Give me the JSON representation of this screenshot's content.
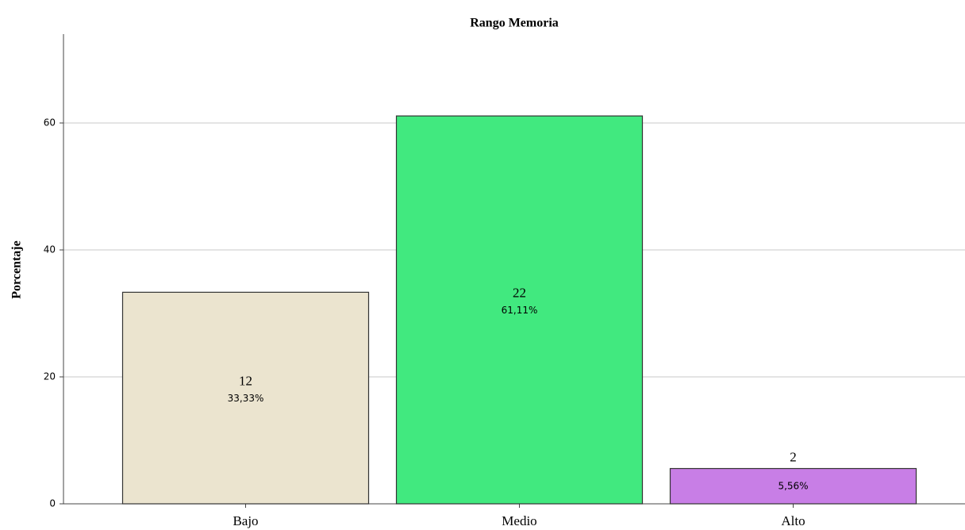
{
  "chart_data": {
    "type": "bar",
    "title": "Rango Memoria",
    "ylabel": "Porcentaje",
    "categories": [
      "Bajo",
      "Medio",
      "Alto"
    ],
    "values": [
      33.33,
      61.11,
      5.56
    ],
    "value_labels": [
      "33,33%",
      "61,11%",
      "5,56%"
    ],
    "counts": [
      12,
      22,
      2
    ],
    "colors": [
      "#ebe4cf",
      "#41e97f",
      "#c87ee6"
    ],
    "ylim": [
      0,
      74
    ],
    "yticks": [
      0,
      20,
      40,
      60
    ],
    "grid": true
  }
}
